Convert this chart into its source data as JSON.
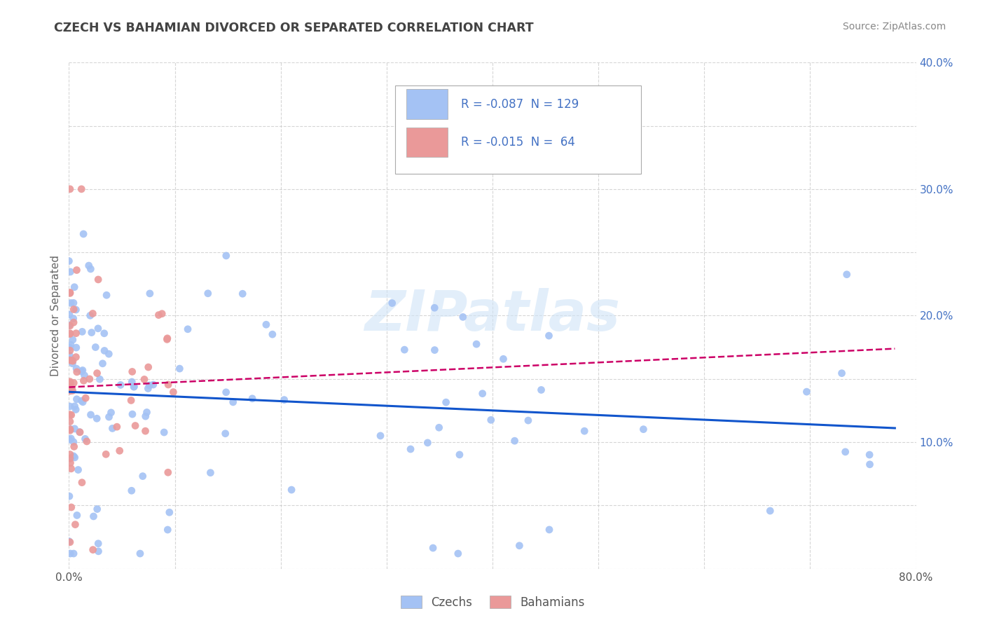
{
  "title": "CZECH VS BAHAMIAN DIVORCED OR SEPARATED CORRELATION CHART",
  "source": "Source: ZipAtlas.com",
  "ylabel": "Divorced or Separated",
  "watermark": "ZIPatlas",
  "xlim": [
    0.0,
    0.8
  ],
  "ylim": [
    0.0,
    0.4
  ],
  "xtick_positions": [
    0.0,
    0.1,
    0.2,
    0.3,
    0.4,
    0.5,
    0.6,
    0.7,
    0.8
  ],
  "xtick_labels": [
    "0.0%",
    "",
    "",
    "",
    "",
    "",
    "",
    "",
    "80.0%"
  ],
  "ytick_positions": [
    0.0,
    0.05,
    0.1,
    0.15,
    0.2,
    0.25,
    0.3,
    0.35,
    0.4
  ],
  "ytick_labels": [
    "",
    "",
    "10.0%",
    "",
    "20.0%",
    "",
    "30.0%",
    "",
    "40.0%"
  ],
  "color_czech": "#a4c2f4",
  "color_bahamian": "#ea9999",
  "line_color_czech": "#1155cc",
  "line_color_bahamian": "#cc0066",
  "bg_color": "#ffffff",
  "grid_color": "#cccccc",
  "title_color": "#434343",
  "legend_label_czech": "Czechs",
  "legend_label_bahamian": "Bahamians",
  "r_czech": -0.087,
  "n_czech": 129,
  "r_bahamian": -0.015,
  "n_bahamian": 64
}
